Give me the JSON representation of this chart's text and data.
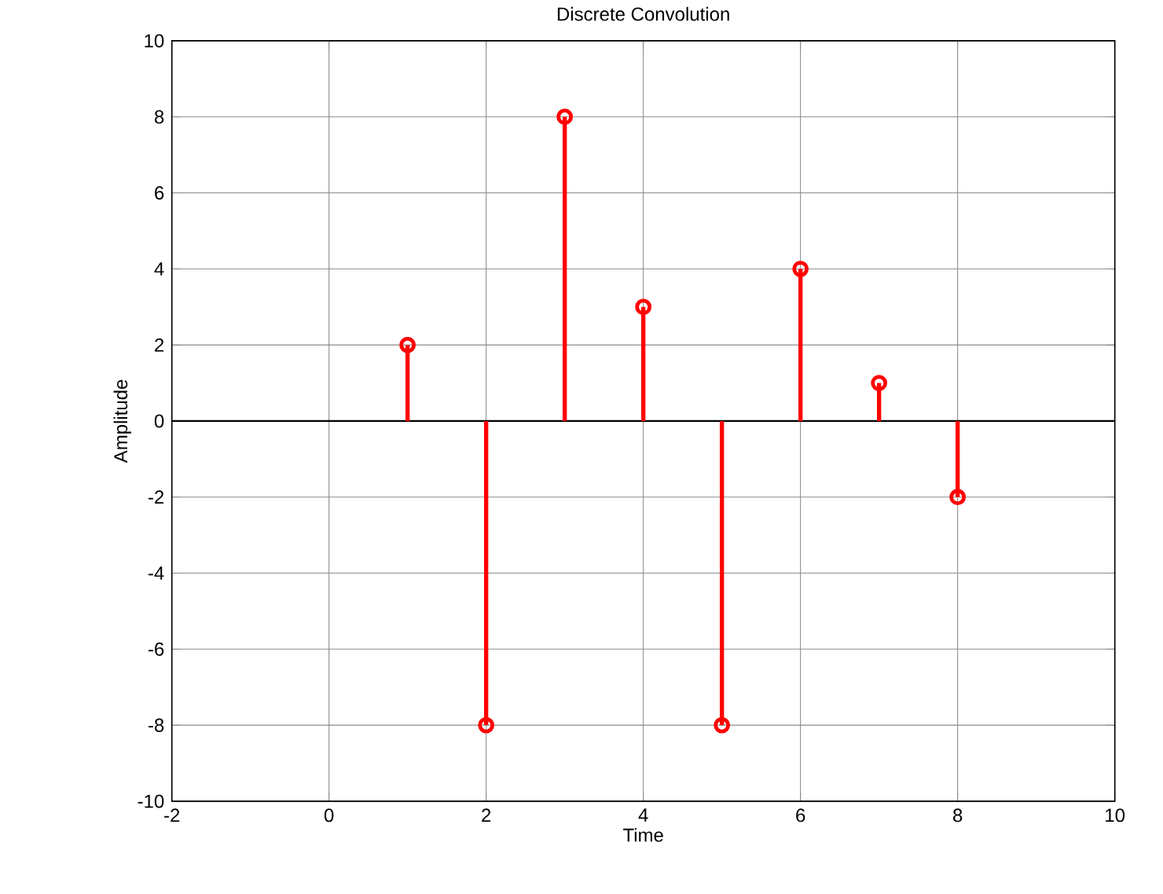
{
  "chart_data": {
    "type": "lollipop",
    "title": "Discrete Convolution",
    "xlabel": "Time",
    "ylabel": "Amplitude",
    "x": [
      1,
      2,
      3,
      4,
      5,
      6,
      7,
      8
    ],
    "values": [
      2,
      -8,
      8,
      3,
      -8,
      4,
      1,
      -2
    ],
    "color": "#ff0000",
    "marker": "circle",
    "xlim": [
      -2,
      10
    ],
    "ylim": [
      -10,
      10
    ],
    "xticks": [
      -2,
      0,
      2,
      4,
      6,
      8,
      10
    ],
    "yticks": [
      -10,
      -8,
      -6,
      -4,
      -2,
      0,
      2,
      4,
      6,
      8,
      10
    ],
    "grid": true,
    "ref_lines": [
      {
        "axis": "y",
        "value": 0,
        "color": "#000000"
      }
    ]
  }
}
